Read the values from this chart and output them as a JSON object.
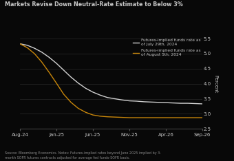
{
  "title": "Markets Revise Down Neutral-Rate Estimate to Below 3%",
  "background_color": "#080808",
  "text_color": "#c8c8c8",
  "ylabel": "Percent",
  "source_text": "Source: Bloomberg Economics. Notes: Futures-implied rates beyond June 2025 implied by 3-\nmonth SOFR futures contracts adjusted for average fed funds-SOFR basis.",
  "x_labels": [
    "Aug-24",
    "Jan-25",
    "Jun-25",
    "Nov-25",
    "Apr-26",
    "Sep-26"
  ],
  "x_ticks": [
    0,
    5,
    10,
    15,
    20,
    25
  ],
  "ylim": [
    2.5,
    5.5
  ],
  "yticks": [
    2.5,
    3.0,
    3.5,
    4.0,
    4.5,
    5.0,
    5.5
  ],
  "xlim": [
    0,
    25
  ],
  "series_july": {
    "label": "Futures-implied funds rate as\nof July 29th, 2024",
    "color": "#d0d0d0",
    "x": [
      0,
      1,
      2,
      3,
      4,
      5,
      6,
      7,
      8,
      9,
      10,
      11,
      12,
      13,
      14,
      15,
      16,
      17,
      18,
      19,
      20,
      21,
      22,
      23,
      24,
      25
    ],
    "y": [
      5.33,
      5.28,
      5.18,
      5.05,
      4.88,
      4.68,
      4.45,
      4.22,
      4.02,
      3.85,
      3.72,
      3.62,
      3.54,
      3.5,
      3.46,
      3.43,
      3.42,
      3.4,
      3.39,
      3.38,
      3.37,
      3.36,
      3.35,
      3.35,
      3.34,
      3.33
    ]
  },
  "series_august": {
    "label": "Futures-implied funds rate as\nof August 5th, 2024",
    "color": "#c8860a",
    "x": [
      0,
      1,
      2,
      3,
      4,
      5,
      6,
      7,
      8,
      9,
      10,
      11,
      12,
      13,
      14,
      15,
      16,
      17,
      18,
      19,
      20,
      21,
      22,
      23,
      24,
      25
    ],
    "y": [
      5.33,
      5.2,
      5.0,
      4.72,
      4.38,
      4.02,
      3.65,
      3.38,
      3.18,
      3.05,
      2.96,
      2.92,
      2.9,
      2.89,
      2.88,
      2.87,
      2.87,
      2.87,
      2.87,
      2.87,
      2.87,
      2.87,
      2.87,
      2.87,
      2.87,
      2.87
    ]
  },
  "grid_color": "#2a2a2a",
  "spine_color": "#555555"
}
